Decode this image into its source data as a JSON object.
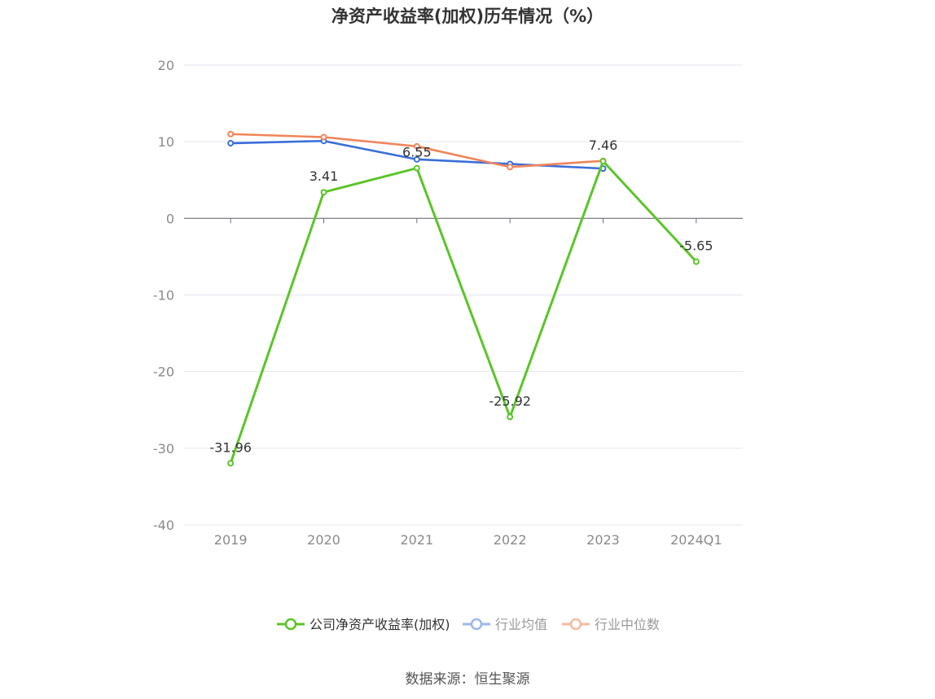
{
  "chart_data": {
    "type": "line",
    "title": "净资产收益率(加权)历年情况（%）",
    "categories": [
      "2019",
      "2020",
      "2021",
      "2022",
      "2023",
      "2024Q1"
    ],
    "ylim": [
      -40,
      20
    ],
    "yticks": [
      20,
      10,
      0,
      -10,
      -20,
      -30,
      -40
    ],
    "grid": true,
    "legend_position": "bottom",
    "series": [
      {
        "name": "公司净资产收益率(加权)",
        "color": "#5cc42a",
        "values": [
          -31.96,
          3.41,
          6.55,
          -25.92,
          7.46,
          -5.65
        ],
        "labels": [
          "-31.96",
          "3.41",
          "6.55",
          "-25.92",
          "7.46",
          "-5.65"
        ]
      },
      {
        "name": "行业均值",
        "color": "#3a6fd8",
        "values": [
          9.8,
          10.1,
          7.7,
          7.1,
          6.5,
          null
        ]
      },
      {
        "name": "行业中位数",
        "color": "#f0845a",
        "values": [
          11.0,
          10.6,
          9.4,
          6.7,
          7.5,
          null
        ]
      }
    ]
  },
  "source": "数据来源：恒生聚源"
}
